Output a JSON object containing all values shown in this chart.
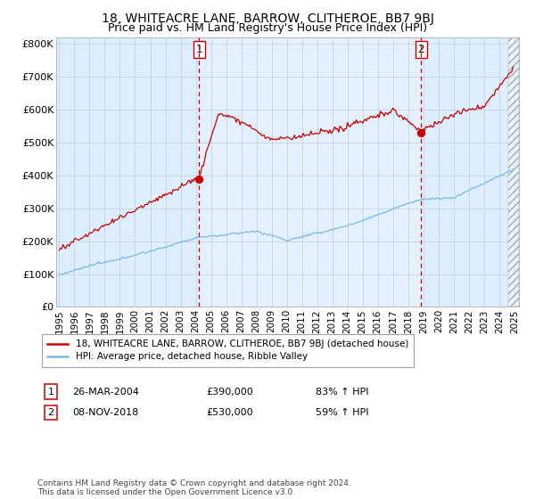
{
  "title": "18, WHITEACRE LANE, BARROW, CLITHEROE, BB7 9BJ",
  "subtitle": "Price paid vs. HM Land Registry's House Price Index (HPI)",
  "ylim": [
    0,
    820000
  ],
  "yticks": [
    0,
    100000,
    200000,
    300000,
    400000,
    500000,
    600000,
    700000,
    800000
  ],
  "ytick_labels": [
    "£0",
    "£100K",
    "£200K",
    "£300K",
    "£400K",
    "£500K",
    "£600K",
    "£700K",
    "£800K"
  ],
  "x_start_year": 1995,
  "x_end_year": 2025,
  "xtick_years": [
    1995,
    1996,
    1997,
    1998,
    1999,
    2000,
    2001,
    2002,
    2003,
    2004,
    2005,
    2006,
    2007,
    2008,
    2009,
    2010,
    2011,
    2012,
    2013,
    2014,
    2015,
    2016,
    2017,
    2018,
    2019,
    2020,
    2021,
    2022,
    2023,
    2024,
    2025
  ],
  "sale1_date_x": 2004.23,
  "sale1_price": 390000,
  "sale2_date_x": 2018.85,
  "sale2_price": 530000,
  "hpi_color": "#7fb8e0",
  "price_color": "#cc0000",
  "dot_color": "#cc0000",
  "vline_color": "#cc0000",
  "bg_color": "#ddeeff",
  "bg_between_color": "#cce0f5",
  "grid_color": "#c8d8e8",
  "hatch_color": "#b0b0b0",
  "legend_label_price": "18, WHITEACRE LANE, BARROW, CLITHEROE, BB7 9BJ (detached house)",
  "legend_label_hpi": "HPI: Average price, detached house, Ribble Valley",
  "annotation1_num": "1",
  "annotation1_date": "26-MAR-2004",
  "annotation1_price": "£390,000",
  "annotation1_hpi": "83% ↑ HPI",
  "annotation2_num": "2",
  "annotation2_date": "08-NOV-2018",
  "annotation2_price": "£530,000",
  "annotation2_hpi": "59% ↑ HPI",
  "footnote": "Contains HM Land Registry data © Crown copyright and database right 2024.\nThis data is licensed under the Open Government Licence v3.0.",
  "title_fontsize": 10,
  "subtitle_fontsize": 9
}
